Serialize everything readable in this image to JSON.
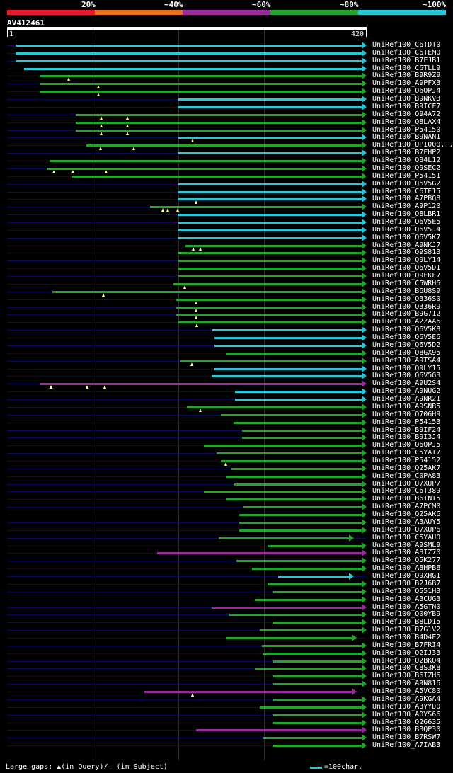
{
  "legend": {
    "segments": [
      {
        "color": "#e8192c",
        "label": "20%"
      },
      {
        "color": "#e66f1a",
        "label": "~40%"
      },
      {
        "color": "#9b2a9d",
        "label": "~60%"
      },
      {
        "color": "#24a42d",
        "label": "~80%"
      },
      {
        "color": "#27c7d6",
        "label": "~100%"
      }
    ]
  },
  "query": {
    "id": "AV412461",
    "start_label": "1",
    "end_label": "420",
    "length": 420
  },
  "hits": [
    {
      "label": "UniRef100_C6TDT0",
      "start": 10,
      "end": 420,
      "color": "cyan",
      "gaps": []
    },
    {
      "label": "UniRef100_C6TEM0",
      "start": 10,
      "end": 420,
      "color": "cyan",
      "gaps": []
    },
    {
      "label": "UniRef100_B7FJB1",
      "start": 10,
      "end": 420,
      "color": "cyan",
      "gaps": []
    },
    {
      "label": "UniRef100_C6TLL9",
      "start": 20,
      "end": 420,
      "color": "cyan",
      "gaps": []
    },
    {
      "label": "UniRef100_B9R9Z9",
      "start": 38,
      "end": 420,
      "color": "green",
      "gaps": [
        72
      ]
    },
    {
      "label": "UniRef100_A9PFX3",
      "start": 38,
      "end": 420,
      "color": "green",
      "gaps": [
        107
      ]
    },
    {
      "label": "UniRef100_Q6QPJ4",
      "start": 38,
      "end": 420,
      "color": "green",
      "gaps": [
        107
      ]
    },
    {
      "label": "UniRef100_B9NKV3",
      "start": 200,
      "end": 420,
      "color": "cyan",
      "gaps": []
    },
    {
      "label": "UniRef100_B9ICF7",
      "start": 200,
      "end": 420,
      "color": "cyan",
      "gaps": []
    },
    {
      "label": "UniRef100_Q94A72",
      "start": 80,
      "end": 420,
      "color": "green",
      "gaps": [
        110,
        141
      ]
    },
    {
      "label": "UniRef100_Q8LAX4",
      "start": 80,
      "end": 420,
      "color": "green",
      "gaps": [
        110,
        141
      ]
    },
    {
      "label": "UniRef100_P54150",
      "start": 80,
      "end": 420,
      "color": "green",
      "gaps": [
        110,
        141
      ]
    },
    {
      "label": "UniRef100_B9NAN1",
      "start": 200,
      "end": 420,
      "color": "cyan",
      "gaps": [
        217
      ]
    },
    {
      "label": "UniRef100_UPI000...",
      "start": 93,
      "end": 420,
      "color": "green",
      "gaps": [
        109,
        148
      ]
    },
    {
      "label": "UniRef100_B7FHP2",
      "start": 200,
      "end": 420,
      "color": "cyan",
      "gaps": []
    },
    {
      "label": "UniRef100_Q84L12",
      "start": 50,
      "end": 420,
      "color": "green",
      "gaps": []
    },
    {
      "label": "UniRef100_Q9SEC2",
      "start": 46,
      "end": 420,
      "color": "green",
      "gaps": [
        55,
        77,
        116
      ]
    },
    {
      "label": "UniRef100_P54151",
      "start": 76,
      "end": 420,
      "color": "green",
      "gaps": []
    },
    {
      "label": "UniRef100_Q6V5G2",
      "start": 200,
      "end": 420,
      "color": "cyan",
      "gaps": []
    },
    {
      "label": "UniRef100_C6TE15",
      "start": 200,
      "end": 420,
      "color": "cyan",
      "gaps": []
    },
    {
      "label": "UniRef100_A7PBQ8",
      "start": 200,
      "end": 420,
      "color": "cyan",
      "gaps": [
        221
      ]
    },
    {
      "label": "UniRef100_A9P120",
      "start": 167,
      "end": 420,
      "color": "green",
      "gaps": [
        182,
        188,
        200
      ]
    },
    {
      "label": "UniRef100_Q8LBR1",
      "start": 200,
      "end": 420,
      "color": "cyan",
      "gaps": []
    },
    {
      "label": "UniRef100_Q6V5E5",
      "start": 200,
      "end": 420,
      "color": "cyan",
      "gaps": []
    },
    {
      "label": "UniRef100_Q6V5J4",
      "start": 200,
      "end": 420,
      "color": "cyan",
      "gaps": []
    },
    {
      "label": "UniRef100_Q6V5K7",
      "start": 200,
      "end": 420,
      "color": "cyan",
      "gaps": []
    },
    {
      "label": "UniRef100_A9NKJ7",
      "start": 209,
      "end": 420,
      "color": "green",
      "gaps": [
        218,
        226
      ]
    },
    {
      "label": "UniRef100_Q9S813",
      "start": 200,
      "end": 420,
      "color": "green",
      "gaps": []
    },
    {
      "label": "UniRef100_Q9LY14",
      "start": 200,
      "end": 420,
      "color": "green",
      "gaps": []
    },
    {
      "label": "UniRef100_Q6V5D1",
      "start": 200,
      "end": 420,
      "color": "green",
      "gaps": []
    },
    {
      "label": "UniRef100_Q9FKF7",
      "start": 200,
      "end": 420,
      "color": "green",
      "gaps": []
    },
    {
      "label": "UniRef100_C5WRH6",
      "start": 195,
      "end": 420,
      "color": "green",
      "gaps": [
        208
      ]
    },
    {
      "label": "UniRef100_B6U8S9",
      "start": 53,
      "end": 420,
      "color": "green",
      "gaps": [
        113
      ]
    },
    {
      "label": "UniRef100_Q336S0",
      "start": 198,
      "end": 420,
      "color": "green",
      "gaps": [
        221
      ]
    },
    {
      "label": "UniRef100_Q336R9",
      "start": 198,
      "end": 420,
      "color": "green",
      "gaps": [
        221
      ]
    },
    {
      "label": "UniRef100_B9G712",
      "start": 198,
      "end": 420,
      "color": "green",
      "gaps": [
        221
      ]
    },
    {
      "label": "UniRef100_A2ZAA6",
      "start": 200,
      "end": 420,
      "color": "green",
      "gaps": [
        222
      ]
    },
    {
      "label": "UniRef100_Q6V5K8",
      "start": 239,
      "end": 420,
      "color": "cyan",
      "gaps": []
    },
    {
      "label": "UniRef100_Q6V5E6",
      "start": 243,
      "end": 420,
      "color": "cyan",
      "gaps": []
    },
    {
      "label": "UniRef100_Q6V5D2",
      "start": 243,
      "end": 420,
      "color": "cyan",
      "gaps": []
    },
    {
      "label": "UniRef100_Q8GX95",
      "start": 257,
      "end": 420,
      "color": "green",
      "gaps": []
    },
    {
      "label": "UniRef100_A9TSA4",
      "start": 203,
      "end": 420,
      "color": "green",
      "gaps": [
        216
      ]
    },
    {
      "label": "UniRef100_Q9LY15",
      "start": 243,
      "end": 420,
      "color": "cyan",
      "gaps": []
    },
    {
      "label": "UniRef100_Q6V5G3",
      "start": 239,
      "end": 420,
      "color": "cyan",
      "gaps": []
    },
    {
      "label": "UniRef100_A9U2S4",
      "start": 38,
      "end": 420,
      "color": "purple",
      "gaps": [
        51,
        94,
        114
      ]
    },
    {
      "label": "UniRef100_A9NUG2",
      "start": 267,
      "end": 420,
      "color": "cyan",
      "gaps": []
    },
    {
      "label": "UniRef100_A9NR21",
      "start": 267,
      "end": 420,
      "color": "cyan",
      "gaps": []
    },
    {
      "label": "UniRef100_A9SNB5",
      "start": 210,
      "end": 420,
      "color": "green",
      "gaps": [
        226
      ]
    },
    {
      "label": "UniRef100_Q706H9",
      "start": 250,
      "end": 420,
      "color": "green",
      "gaps": []
    },
    {
      "label": "UniRef100_P54153",
      "start": 265,
      "end": 420,
      "color": "green",
      "gaps": []
    },
    {
      "label": "UniRef100_B9IF24",
      "start": 275,
      "end": 420,
      "color": "green",
      "gaps": []
    },
    {
      "label": "UniRef100_B9I3J4",
      "start": 275,
      "end": 420,
      "color": "green",
      "gaps": []
    },
    {
      "label": "UniRef100_Q6QPJ5",
      "start": 230,
      "end": 420,
      "color": "green",
      "gaps": []
    },
    {
      "label": "UniRef100_C5YAT7",
      "start": 245,
      "end": 420,
      "color": "green",
      "gaps": []
    },
    {
      "label": "UniRef100_P54152",
      "start": 250,
      "end": 420,
      "color": "green",
      "gaps": [
        256
      ]
    },
    {
      "label": "UniRef100_Q25AK7",
      "start": 262,
      "end": 420,
      "color": "green",
      "gaps": []
    },
    {
      "label": "UniRef100_C0PA83",
      "start": 257,
      "end": 420,
      "color": "green",
      "gaps": []
    },
    {
      "label": "UniRef100_Q7XUP7",
      "start": 265,
      "end": 420,
      "color": "green",
      "gaps": []
    },
    {
      "label": "UniRef100_C6T389",
      "start": 230,
      "end": 420,
      "color": "green",
      "gaps": []
    },
    {
      "label": "UniRef100_B6TNT5",
      "start": 257,
      "end": 420,
      "color": "green",
      "gaps": []
    },
    {
      "label": "UniRef100_A7PCM0",
      "start": 277,
      "end": 420,
      "color": "green",
      "gaps": []
    },
    {
      "label": "UniRef100_Q25AK6",
      "start": 272,
      "end": 420,
      "color": "green",
      "gaps": []
    },
    {
      "label": "UniRef100_A3AUY5",
      "start": 272,
      "end": 420,
      "color": "green",
      "gaps": []
    },
    {
      "label": "UniRef100_Q7XUP6",
      "start": 272,
      "end": 420,
      "color": "green",
      "gaps": []
    },
    {
      "label": "UniRef100_C5YAU0",
      "start": 248,
      "end": 405,
      "color": "green",
      "gaps": []
    },
    {
      "label": "UniRef100_A9SML9",
      "start": 305,
      "end": 420,
      "color": "green",
      "gaps": []
    },
    {
      "label": "UniRef100_A8IZ70",
      "start": 176,
      "end": 420,
      "color": "purple",
      "gaps": []
    },
    {
      "label": "UniRef100_Q5K277",
      "start": 268,
      "end": 420,
      "color": "green",
      "gaps": []
    },
    {
      "label": "UniRef100_A8HPB8",
      "start": 287,
      "end": 420,
      "color": "green",
      "gaps": []
    },
    {
      "label": "UniRef100_Q9XHG1",
      "start": 317,
      "end": 405,
      "color": "cyan",
      "gaps": []
    },
    {
      "label": "UniRef100_B2J6B7",
      "start": 305,
      "end": 420,
      "color": "green",
      "gaps": []
    },
    {
      "label": "UniRef100_Q551H3",
      "start": 311,
      "end": 420,
      "color": "green",
      "gaps": []
    },
    {
      "label": "UniRef100_A3CUG3",
      "start": 290,
      "end": 420,
      "color": "green",
      "gaps": []
    },
    {
      "label": "UniRef100_A5GTN0",
      "start": 239,
      "end": 420,
      "color": "purple",
      "gaps": []
    },
    {
      "label": "UniRef100_Q00YB9",
      "start": 260,
      "end": 420,
      "color": "green",
      "gaps": []
    },
    {
      "label": "UniRef100_B8LD15",
      "start": 311,
      "end": 420,
      "color": "green",
      "gaps": []
    },
    {
      "label": "UniRef100_B7G1V2",
      "start": 296,
      "end": 420,
      "color": "green",
      "gaps": []
    },
    {
      "label": "UniRef100_B4D4E2",
      "start": 257,
      "end": 408,
      "color": "green",
      "gaps": []
    },
    {
      "label": "UniRef100_B7FRI4",
      "start": 298,
      "end": 420,
      "color": "green",
      "gaps": []
    },
    {
      "label": "UniRef100_Q2IJ33",
      "start": 300,
      "end": 420,
      "color": "green",
      "gaps": []
    },
    {
      "label": "UniRef100_Q2BKQ4",
      "start": 311,
      "end": 420,
      "color": "green",
      "gaps": []
    },
    {
      "label": "UniRef100_C8S3K8",
      "start": 290,
      "end": 420,
      "color": "green",
      "gaps": []
    },
    {
      "label": "UniRef100_B6IZH6",
      "start": 311,
      "end": 420,
      "color": "green",
      "gaps": []
    },
    {
      "label": "UniRef100_A9N816",
      "start": 311,
      "end": 420,
      "color": "green",
      "gaps": []
    },
    {
      "label": "UniRef100_A5VC80",
      "start": 161,
      "end": 408,
      "color": "purple",
      "gaps": [
        217
      ]
    },
    {
      "label": "UniRef100_A9KGA4",
      "start": 311,
      "end": 420,
      "color": "green",
      "gaps": []
    },
    {
      "label": "UniRef100_A3YYD0",
      "start": 296,
      "end": 420,
      "color": "green",
      "gaps": []
    },
    {
      "label": "UniRef100_A0YS66",
      "start": 311,
      "end": 420,
      "color": "green",
      "gaps": []
    },
    {
      "label": "UniRef100_Q26635",
      "start": 311,
      "end": 420,
      "color": "green",
      "gaps": []
    },
    {
      "label": "UniRef100_B3QP30",
      "start": 221,
      "end": 420,
      "color": "purple",
      "gaps": []
    },
    {
      "label": "UniRef100_B7RSW7",
      "start": 300,
      "end": 420,
      "color": "green",
      "gaps": []
    },
    {
      "label": "UniRef100_A7IAB3",
      "start": 311,
      "end": 420,
      "color": "green",
      "gaps": []
    }
  ],
  "colors": {
    "cyan": "#27c7d6",
    "green": "#24a42d",
    "purple": "#9b2a9d",
    "dim": "#0b0b5e",
    "gap_marker": "#ffff88"
  },
  "footer": {
    "gaps_text": "Large gaps: ▲(in Query)/– (in Subject)",
    "scale_text": "=100char."
  }
}
